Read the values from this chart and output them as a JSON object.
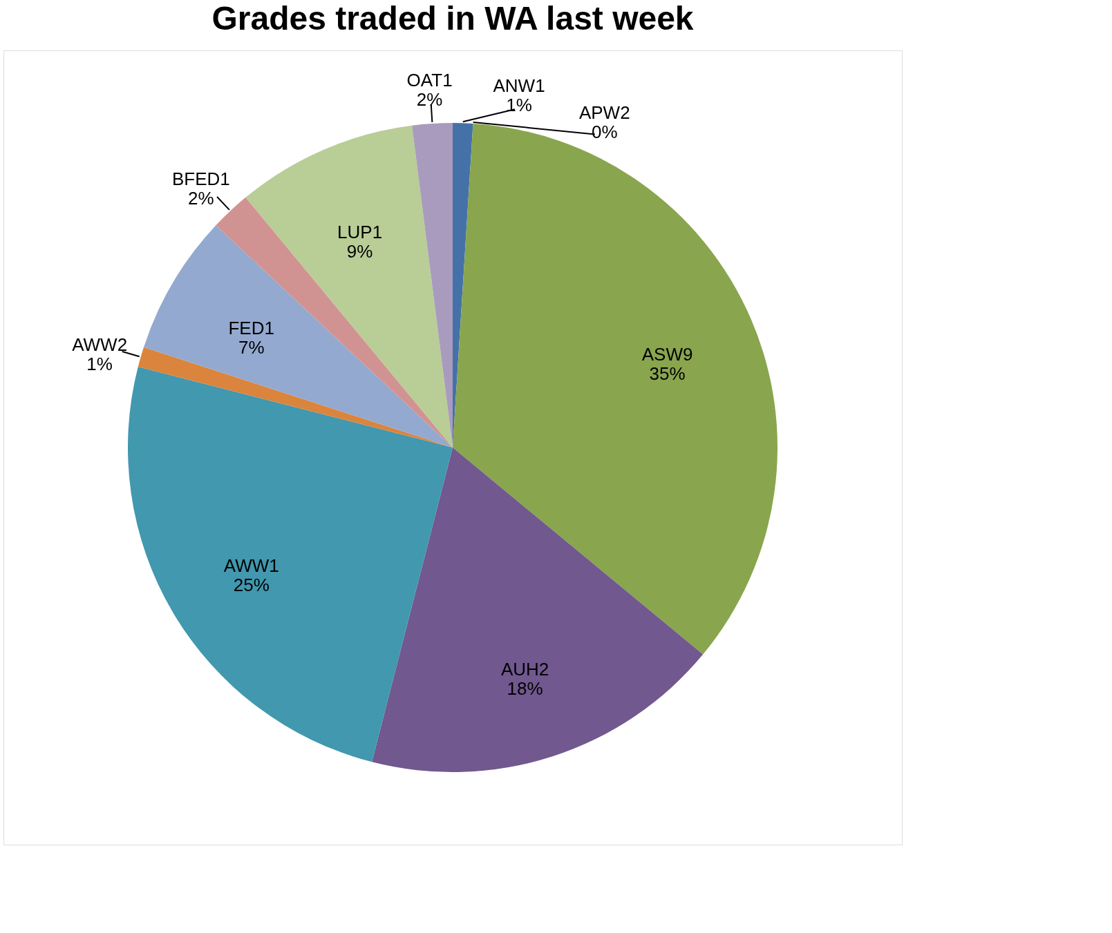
{
  "chart_data": {
    "type": "pie",
    "title": "Grades traded in WA last week",
    "categories": [
      "ANW1",
      "APW2",
      "ASW9",
      "AUH2",
      "AWW1",
      "AWW2",
      "FED1",
      "BFED1",
      "LUP1",
      "OAT1"
    ],
    "values": [
      1,
      0,
      35,
      18,
      25,
      1,
      7,
      2,
      9,
      2
    ],
    "value_labels": [
      "1%",
      "0%",
      "35%",
      "18%",
      "25%",
      "1%",
      "7%",
      "2%",
      "9%",
      "2%"
    ],
    "colors": [
      "#4472a8",
      "#aa4643",
      "#89a54e",
      "#71588f",
      "#4198af",
      "#db843d",
      "#93a9cf",
      "#d19392",
      "#b9cd96",
      "#a99bbd"
    ],
    "legend": false
  }
}
